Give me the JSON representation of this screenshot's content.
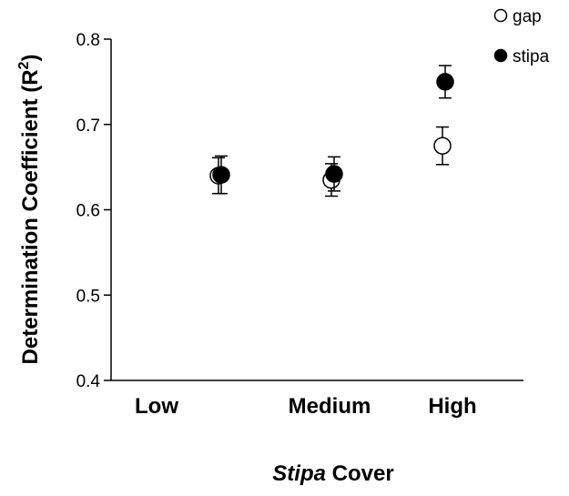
{
  "chart_data": {
    "type": "scatter",
    "categories": [
      "Low",
      "Medium",
      "High"
    ],
    "ylim": [
      0.4,
      0.8
    ],
    "yticks": [
      0.4,
      0.5,
      0.6,
      0.7,
      0.8
    ],
    "ytick_labels": [
      "0.4",
      "0.5",
      "0.6",
      "0.7",
      "0.8"
    ],
    "ylabel_main": "Determination Coefficient (R",
    "ylabel_sup": "2",
    "ylabel_end": ")",
    "xlabel_italic": "Stipa",
    "xlabel_rest": " Cover",
    "legend_position": "top-right",
    "grid": false,
    "series": [
      {
        "name": "gap",
        "marker": "open-circle",
        "color": "#000000",
        "values": [
          0.64,
          0.635,
          0.675
        ],
        "err": [
          0.021,
          0.019,
          0.022
        ]
      },
      {
        "name": "stipa",
        "marker": "filled-circle",
        "color": "#000000",
        "values": [
          0.641,
          0.642,
          0.75
        ],
        "err": [
          0.022,
          0.02,
          0.019
        ]
      }
    ]
  }
}
